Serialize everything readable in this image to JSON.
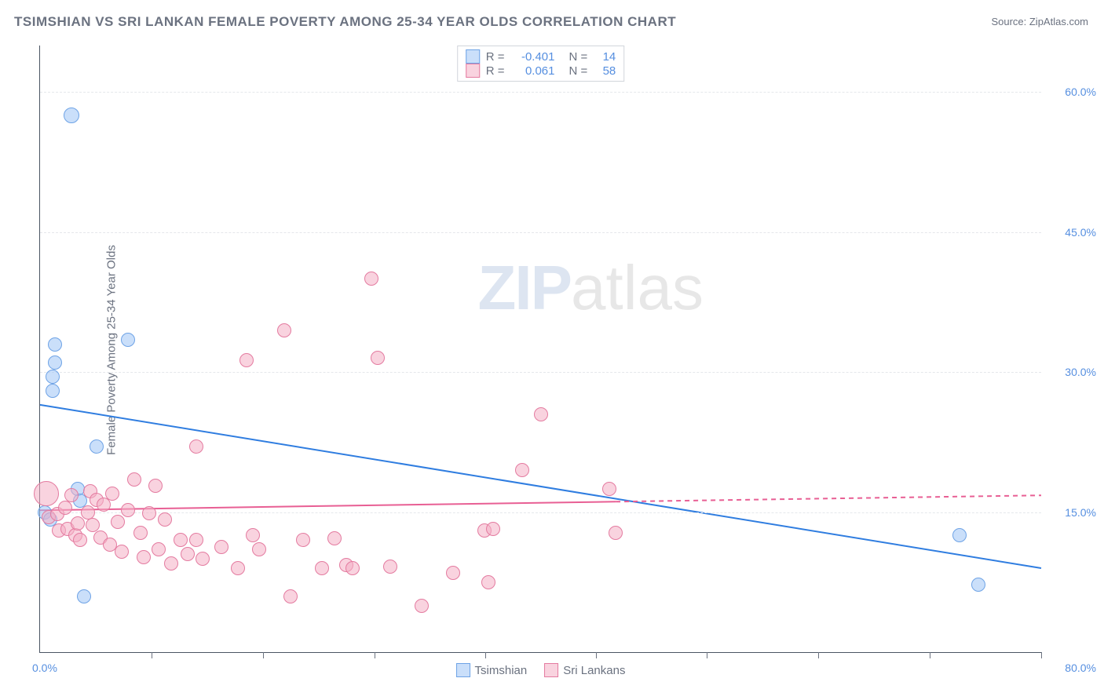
{
  "title": "TSIMSHIAN VS SRI LANKAN FEMALE POVERTY AMONG 25-34 YEAR OLDS CORRELATION CHART",
  "source_label": "Source: ZipAtlas.com",
  "ylabel": "Female Poverty Among 25-34 Year Olds",
  "watermark": {
    "part1": "ZIP",
    "part2": "atlas"
  },
  "chart": {
    "type": "scatter",
    "background_color": "#ffffff",
    "grid_color": "#e5e7eb",
    "axis_color": "#4b5563",
    "label_color": "#6b7280",
    "value_color": "#568fe0",
    "xlim": [
      0,
      80
    ],
    "ylim": [
      0,
      65
    ],
    "yticks": [
      15,
      30,
      45,
      60
    ],
    "ytick_labels": [
      "15.0%",
      "30.0%",
      "45.0%",
      "60.0%"
    ],
    "xticks": [
      8.9,
      17.8,
      26.7,
      35.6,
      44.4,
      53.3,
      62.2,
      71.1,
      80
    ],
    "xmin_label": "0.0%",
    "xmax_label": "80.0%",
    "marker_radius_default": 9,
    "marker_border_width": 1,
    "series": [
      {
        "name": "Tsimshian",
        "fill_color": "rgba(158,197,245,0.55)",
        "stroke_color": "#6ea3e6",
        "r_value": "-0.401",
        "n_value": "14",
        "trend": {
          "y_at_xmin": 26.5,
          "y_at_xmax": 9.0,
          "color": "#2f7de0",
          "width": 2,
          "dash": "none",
          "solid_until_x": 80
        },
        "points": [
          {
            "x": 0.4,
            "y": 15.0
          },
          {
            "x": 0.8,
            "y": 14.2
          },
          {
            "x": 2.5,
            "y": 57.5,
            "r": 10
          },
          {
            "x": 1.2,
            "y": 33.0
          },
          {
            "x": 1.2,
            "y": 31.0
          },
          {
            "x": 1.0,
            "y": 29.5
          },
          {
            "x": 1.0,
            "y": 28.0
          },
          {
            "x": 7.0,
            "y": 33.5
          },
          {
            "x": 4.5,
            "y": 22.0
          },
          {
            "x": 3.0,
            "y": 17.5
          },
          {
            "x": 3.2,
            "y": 16.2
          },
          {
            "x": 3.5,
            "y": 6.0
          },
          {
            "x": 73.5,
            "y": 12.5
          },
          {
            "x": 75.0,
            "y": 7.2
          }
        ]
      },
      {
        "name": "Sri Lankans",
        "fill_color": "rgba(244,174,196,0.55)",
        "stroke_color": "#e47ba0",
        "r_value": "0.061",
        "n_value": "58",
        "trend": {
          "y_at_xmin": 15.2,
          "y_at_xmax": 16.8,
          "color": "#e85f94",
          "width": 2,
          "dash": "6 5",
          "solid_until_x": 46
        },
        "points": [
          {
            "x": 0.5,
            "y": 17.0,
            "r": 16
          },
          {
            "x": 0.7,
            "y": 14.5
          },
          {
            "x": 1.4,
            "y": 14.8
          },
          {
            "x": 1.5,
            "y": 13.0
          },
          {
            "x": 2.0,
            "y": 15.5
          },
          {
            "x": 2.2,
            "y": 13.2
          },
          {
            "x": 2.5,
            "y": 16.8
          },
          {
            "x": 2.8,
            "y": 12.5
          },
          {
            "x": 3.0,
            "y": 13.8
          },
          {
            "x": 3.2,
            "y": 12.0
          },
          {
            "x": 3.8,
            "y": 15.0
          },
          {
            "x": 4.0,
            "y": 17.2
          },
          {
            "x": 4.2,
            "y": 13.6
          },
          {
            "x": 4.5,
            "y": 16.3
          },
          {
            "x": 4.8,
            "y": 12.3
          },
          {
            "x": 5.1,
            "y": 15.8
          },
          {
            "x": 5.6,
            "y": 11.5
          },
          {
            "x": 5.8,
            "y": 17.0
          },
          {
            "x": 6.2,
            "y": 14.0
          },
          {
            "x": 6.5,
            "y": 10.8
          },
          {
            "x": 7.0,
            "y": 15.2
          },
          {
            "x": 7.5,
            "y": 18.5
          },
          {
            "x": 8.0,
            "y": 12.8
          },
          {
            "x": 8.3,
            "y": 10.2
          },
          {
            "x": 8.7,
            "y": 14.9
          },
          {
            "x": 9.2,
            "y": 17.8
          },
          {
            "x": 9.5,
            "y": 11.0
          },
          {
            "x": 10.0,
            "y": 14.2
          },
          {
            "x": 10.5,
            "y": 9.5
          },
          {
            "x": 11.2,
            "y": 12.0
          },
          {
            "x": 11.8,
            "y": 10.5
          },
          {
            "x": 12.5,
            "y": 22.0
          },
          {
            "x": 12.5,
            "y": 12.0
          },
          {
            "x": 13.0,
            "y": 10.0
          },
          {
            "x": 14.5,
            "y": 11.3
          },
          {
            "x": 15.8,
            "y": 9.0
          },
          {
            "x": 16.5,
            "y": 31.3
          },
          {
            "x": 17.0,
            "y": 12.5
          },
          {
            "x": 17.5,
            "y": 11.0
          },
          {
            "x": 19.5,
            "y": 34.5
          },
          {
            "x": 20.0,
            "y": 6.0
          },
          {
            "x": 21.0,
            "y": 12.0
          },
          {
            "x": 22.5,
            "y": 9.0
          },
          {
            "x": 23.5,
            "y": 12.2
          },
          {
            "x": 24.5,
            "y": 9.3
          },
          {
            "x": 25.0,
            "y": 9.0
          },
          {
            "x": 26.5,
            "y": 40.0
          },
          {
            "x": 27.0,
            "y": 31.5
          },
          {
            "x": 28.0,
            "y": 9.2
          },
          {
            "x": 30.5,
            "y": 5.0
          },
          {
            "x": 33.0,
            "y": 8.5
          },
          {
            "x": 35.5,
            "y": 13.0
          },
          {
            "x": 35.8,
            "y": 7.5
          },
          {
            "x": 36.2,
            "y": 13.2
          },
          {
            "x": 38.5,
            "y": 19.5
          },
          {
            "x": 40.0,
            "y": 25.5
          },
          {
            "x": 45.5,
            "y": 17.5
          },
          {
            "x": 46.0,
            "y": 12.8
          }
        ]
      }
    ],
    "legend_top_labels": {
      "r": "R =",
      "n": "N ="
    },
    "legend_bottom": [
      {
        "label": "Tsimshian",
        "series_index": 0
      },
      {
        "label": "Sri Lankans",
        "series_index": 1
      }
    ]
  }
}
